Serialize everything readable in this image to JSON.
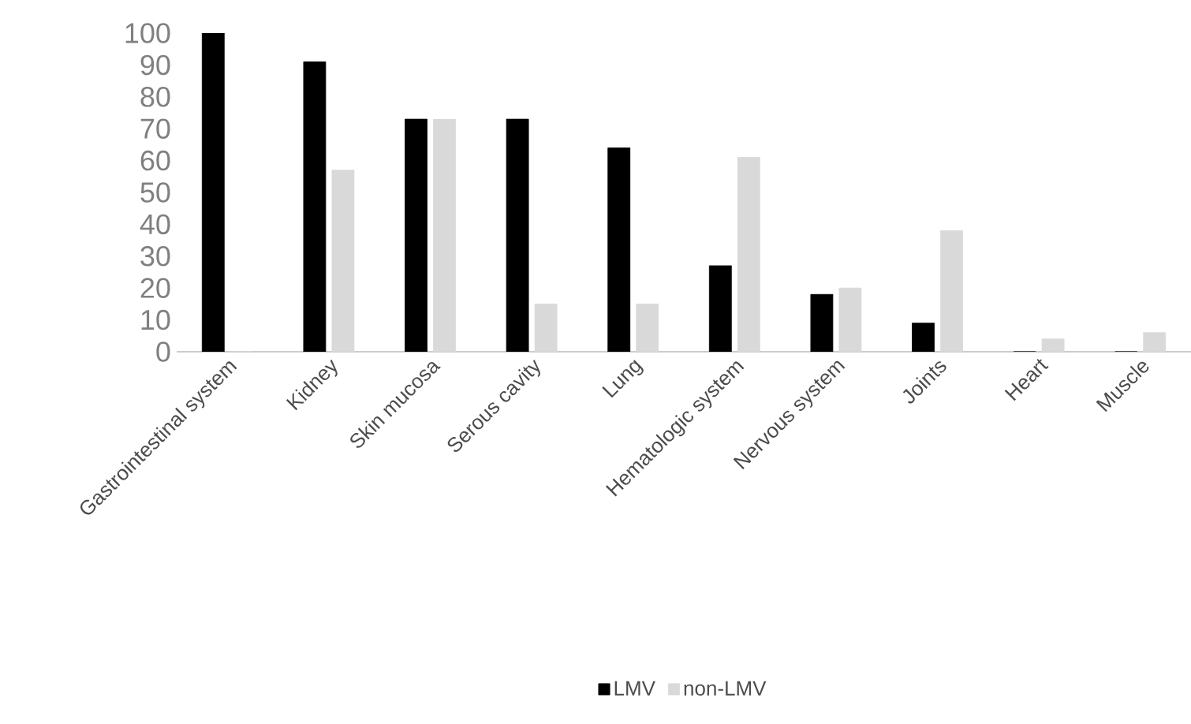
{
  "chart_data": {
    "type": "bar",
    "categories": [
      "Gastrointestinal system",
      "Kidney",
      "Skin mucosa",
      "Serous cavity",
      "Lung",
      "Hematologic system",
      "Nervous system",
      "Joints",
      "Heart",
      "Muscle"
    ],
    "series": [
      {
        "name": "LMV",
        "color": "#000000",
        "values": [
          100,
          91,
          73,
          73,
          64,
          27,
          18,
          9,
          0,
          0
        ]
      },
      {
        "name": "non-LMV",
        "color": "#d9d9d9",
        "values": [
          0,
          57,
          73,
          15,
          15,
          61,
          20,
          38,
          4,
          6
        ]
      }
    ],
    "ylim": [
      0,
      100
    ],
    "yticks": [
      0,
      10,
      20,
      30,
      40,
      50,
      60,
      70,
      80,
      90,
      100
    ],
    "grid": false,
    "legend": "bottom"
  }
}
